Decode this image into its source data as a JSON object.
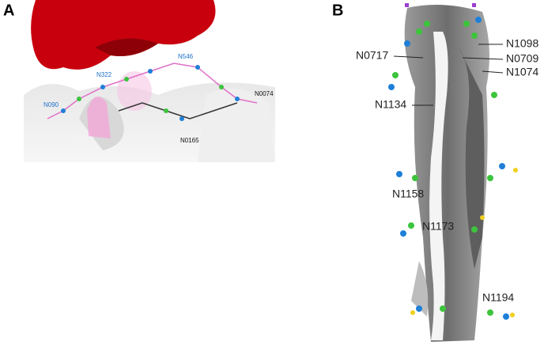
{
  "panels": [
    {
      "letter": "A",
      "labels": [
        "N546",
        "N322",
        "N090",
        "N0074",
        "N0165"
      ]
    },
    {
      "letter": "B",
      "labels": [
        "N1098",
        "N0717",
        "N0709",
        "N1074",
        "N1134",
        "N1158",
        "N1173",
        "N1194"
      ]
    }
  ]
}
